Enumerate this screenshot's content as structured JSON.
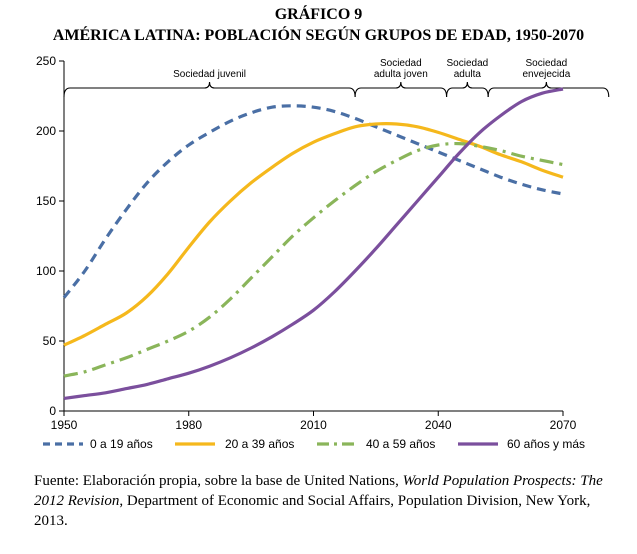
{
  "header": {
    "label": "GRÁFICO 9",
    "title": "AMÉRICA LATINA: POBLACIÓN SEGÚN GRUPOS DE EDAD, 1950-2070"
  },
  "chart_data": {
    "type": "line",
    "title": "AMÉRICA LATINA: POBLACIÓN SEGÚN GRUPOS DE EDAD, 1950-2070",
    "xlabel": "",
    "ylabel": "",
    "xlim": [
      1950,
      2070
    ],
    "ylim": [
      0,
      250
    ],
    "x_ticks": [
      1950,
      1980,
      2010,
      2040,
      2070
    ],
    "y_ticks": [
      0,
      50,
      100,
      150,
      200,
      250
    ],
    "grid": false,
    "legend_position": "bottom",
    "x": [
      1950,
      1955,
      1960,
      1965,
      1970,
      1975,
      1980,
      1985,
      1990,
      1995,
      2000,
      2005,
      2010,
      2015,
      2020,
      2025,
      2030,
      2035,
      2040,
      2045,
      2050,
      2055,
      2060,
      2065,
      2070
    ],
    "series": [
      {
        "name": "0 a 19 años",
        "color": "#4a6fa5",
        "dash": "dashed",
        "values": [
          81,
          100,
          123,
          144,
          163,
          178,
          190,
          199,
          207,
          213,
          217,
          218,
          217,
          214,
          209,
          203,
          197,
          191,
          185,
          179,
          173,
          167,
          162,
          158,
          155
        ]
      },
      {
        "name": "20 a 39 años",
        "color": "#f5b81c",
        "dash": "solid",
        "values": [
          47,
          54,
          62,
          70,
          82,
          98,
          117,
          135,
          150,
          163,
          174,
          184,
          192,
          198,
          203,
          205,
          205,
          203,
          199,
          194,
          189,
          183,
          178,
          172,
          167
        ]
      },
      {
        "name": "40 a 59 años",
        "color": "#8ab55a",
        "dash": "dashdot",
        "values": [
          25,
          28,
          33,
          38,
          44,
          50,
          57,
          67,
          80,
          95,
          110,
          125,
          138,
          150,
          161,
          171,
          179,
          186,
          190,
          191,
          189,
          186,
          182,
          179,
          176
        ]
      },
      {
        "name": "60 años y más",
        "color": "#7b4f9d",
        "dash": "solid",
        "values": [
          9,
          11,
          13,
          16,
          19,
          23,
          27,
          32,
          38,
          45,
          53,
          62,
          72,
          85,
          100,
          116,
          133,
          150,
          167,
          184,
          199,
          211,
          221,
          227,
          230
        ]
      }
    ],
    "brackets": [
      {
        "label_lines": [
          "Sociedad juvenil"
        ],
        "from": 1950,
        "to": 2020,
        "peak": 1985
      },
      {
        "label_lines": [
          "Sociedad",
          "adulta joven"
        ],
        "from": 2020,
        "to": 2042,
        "peak": 2031
      },
      {
        "label_lines": [
          "Sociedad",
          "adulta"
        ],
        "from": 2042,
        "to": 2052,
        "peak": 2047
      },
      {
        "label_lines": [
          "Sociedad",
          "envejecida"
        ],
        "from": 2052,
        "to": 2081,
        "peak": 2066
      }
    ]
  },
  "source": {
    "prefix": "Fuente: Elaboración propia, sobre la base de United Nations, ",
    "italic": "World Population Prospects: The 2012 Revision",
    "suffix": ", Department of Economic and Social Affairs, Population Division, New York, 2013."
  }
}
